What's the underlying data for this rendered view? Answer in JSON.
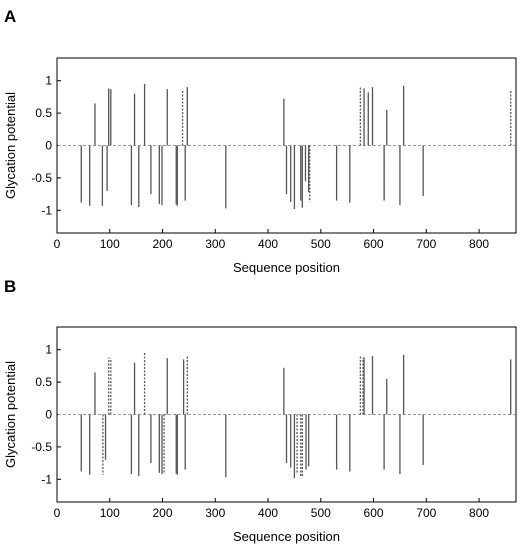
{
  "chart_data": [
    {
      "panel": "A",
      "type": "bar",
      "xlabel": "Sequence position",
      "ylabel": "Glycation potential",
      "xlim": [
        0,
        870
      ],
      "ylim": [
        -1.35,
        1.35
      ],
      "xticks": [
        0,
        100,
        200,
        300,
        400,
        500,
        600,
        700,
        800
      ],
      "yticks": [
        -1,
        -0.5,
        0,
        0.5,
        1
      ],
      "ytick_labels": [
        "-1",
        "-0.5",
        "0",
        "0.5",
        "1"
      ],
      "zero_line": "dashed",
      "grid": false,
      "series": [
        {
          "style": "solid",
          "x": [
            46,
            62,
            72,
            86,
            95,
            98,
            102,
            141,
            147,
            155,
            166,
            178,
            194,
            199,
            209,
            226,
            228,
            243,
            247,
            320,
            430,
            435,
            443,
            450,
            462,
            465,
            471,
            477,
            530,
            555,
            582,
            590,
            598,
            620,
            625,
            650,
            657,
            694
          ],
          "values": [
            -0.88,
            -0.93,
            0.65,
            -0.93,
            -0.7,
            0.88,
            0.87,
            -0.92,
            0.8,
            -0.95,
            0.95,
            -0.75,
            -0.9,
            -0.92,
            0.87,
            -0.91,
            -0.93,
            -0.85,
            0.9,
            -0.97,
            0.72,
            -0.75,
            -0.87,
            -0.98,
            -0.85,
            -0.96,
            -0.55,
            -0.72,
            -0.85,
            -0.88,
            0.88,
            0.82,
            0.9,
            -0.85,
            0.55,
            -0.92,
            0.92,
            -0.78
          ]
        },
        {
          "style": "dashed",
          "x": [
            238,
            479,
            575,
            620,
            860
          ],
          "values": [
            0.85,
            -0.87,
            0.9,
            -0.85,
            0.85
          ]
        }
      ]
    },
    {
      "panel": "B",
      "type": "bar",
      "xlabel": "Sequence position",
      "ylabel": "Glycation potential",
      "xlim": [
        0,
        870
      ],
      "ylim": [
        -1.35,
        1.35
      ],
      "xticks": [
        0,
        100,
        200,
        300,
        400,
        500,
        600,
        700,
        800
      ],
      "yticks": [
        -1,
        -0.5,
        0,
        0.5,
        1
      ],
      "ytick_labels": [
        "-1",
        "-0.5",
        "0",
        "0.5",
        "1"
      ],
      "zero_line": "dashed",
      "grid": false,
      "series": [
        {
          "style": "solid",
          "x": [
            46,
            62,
            72,
            92,
            141,
            147,
            155,
            178,
            194,
            199,
            209,
            226,
            228,
            240,
            243,
            320,
            430,
            435,
            443,
            450,
            472,
            477,
            530,
            555,
            582,
            598,
            620,
            625,
            650,
            657,
            694,
            860
          ],
          "values": [
            -0.88,
            -0.93,
            0.65,
            -0.7,
            -0.92,
            0.8,
            -0.95,
            -0.75,
            -0.9,
            -0.92,
            0.87,
            -0.91,
            -0.93,
            0.85,
            -0.85,
            -0.97,
            0.72,
            -0.75,
            -0.82,
            -0.98,
            -0.85,
            -0.8,
            -0.85,
            -0.88,
            0.88,
            0.9,
            -0.85,
            0.55,
            -0.92,
            0.92,
            -0.78,
            0.85
          ]
        },
        {
          "style": "dashed",
          "x": [
            87,
            98,
            102,
            166,
            203,
            247,
            455,
            462,
            465,
            575,
            580
          ],
          "values": [
            -0.93,
            0.88,
            0.87,
            0.95,
            -0.92,
            0.9,
            -0.9,
            -0.95,
            -0.96,
            0.9,
            0.88
          ]
        }
      ]
    }
  ]
}
